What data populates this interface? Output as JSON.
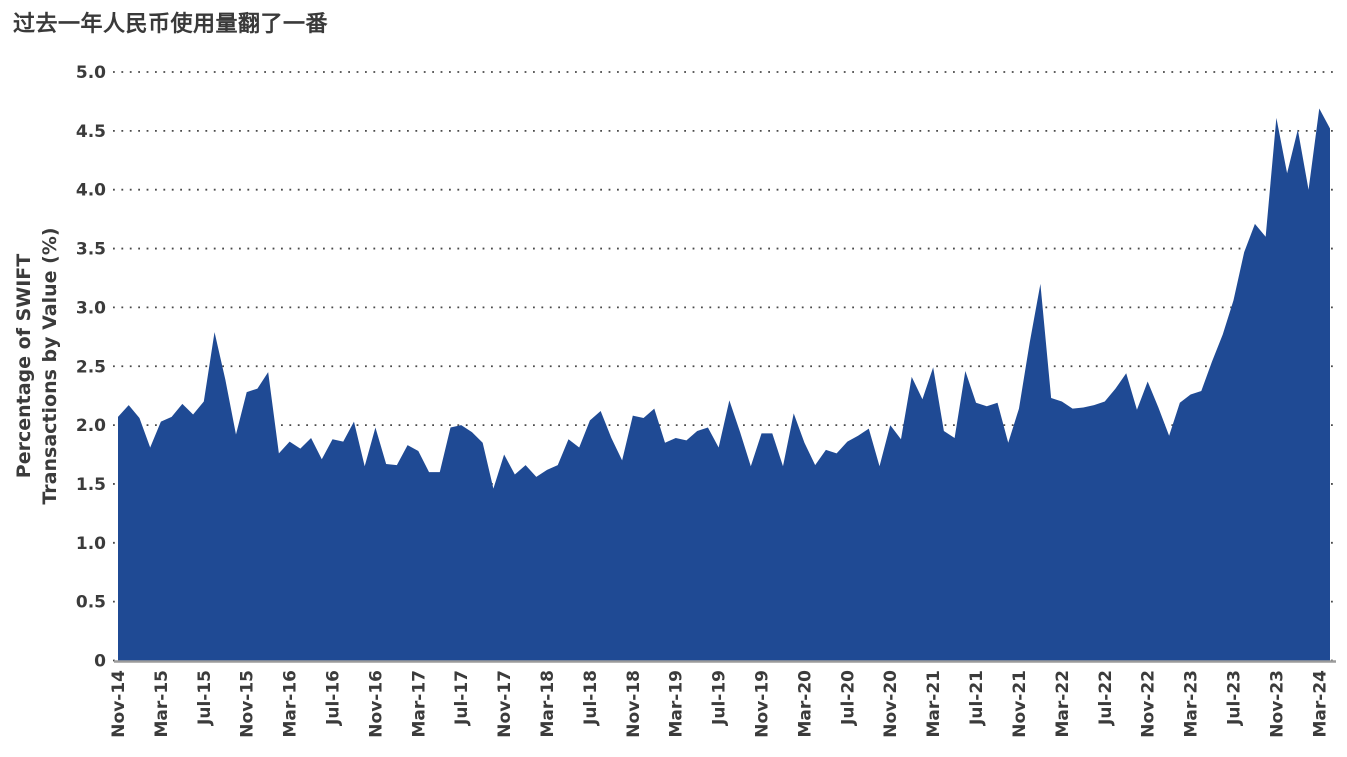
{
  "page": {
    "title": "过去一年人民币使用量翻了一番"
  },
  "chart_data": {
    "type": "area",
    "title": "过去一年人民币使用量翻了一番",
    "ylabel": "Percentage of SWIFT Transactions by Value (%)",
    "ylabel_lines": [
      "Percentage of SWIFT",
      "Transactions by Value (%)"
    ],
    "xlabel": "",
    "ylim": [
      0,
      5
    ],
    "grid": "horizontal-dotted",
    "legend": null,
    "x_tick_every": 4,
    "x_tick_labels_visible": [
      "Nov-14",
      "Mar-15",
      "Jul-15",
      "Nov-15",
      "Mar-16",
      "Jul-16",
      "Nov-16",
      "Mar-17",
      "Jul-17",
      "Nov-17",
      "Mar-18",
      "Jul-18",
      "Nov-18",
      "Mar-19",
      "Jul-19",
      "Nov-19",
      "Mar-20",
      "Jul-20",
      "Nov-20",
      "Mar-21",
      "Jul-21",
      "Nov-21",
      "Mar-22",
      "Jul-22",
      "Nov-22",
      "Mar-23",
      "Jul-23",
      "Nov-23",
      "Mar-24"
    ],
    "y_ticks": [
      {
        "value": 5.0,
        "label": "5.0"
      },
      {
        "value": 4.5,
        "label": "4.5"
      },
      {
        "value": 4.0,
        "label": "4.0"
      },
      {
        "value": 3.5,
        "label": "3.5"
      },
      {
        "value": 3.0,
        "label": "3.0"
      },
      {
        "value": 2.5,
        "label": "2.5"
      },
      {
        "value": 2.0,
        "label": "2.0"
      },
      {
        "value": 1.5,
        "label": "1.5"
      },
      {
        "value": 1.0,
        "label": "1.0"
      },
      {
        "value": 0.5,
        "label": "0.5"
      },
      {
        "value": 0.0,
        "label": "0"
      }
    ],
    "x": [
      "Nov-14",
      "Dec-14",
      "Jan-15",
      "Feb-15",
      "Mar-15",
      "Apr-15",
      "May-15",
      "Jun-15",
      "Jul-15",
      "Aug-15",
      "Sep-15",
      "Oct-15",
      "Nov-15",
      "Dec-15",
      "Jan-16",
      "Feb-16",
      "Mar-16",
      "Apr-16",
      "May-16",
      "Jun-16",
      "Jul-16",
      "Aug-16",
      "Sep-16",
      "Oct-16",
      "Nov-16",
      "Dec-16",
      "Jan-17",
      "Feb-17",
      "Mar-17",
      "Apr-17",
      "May-17",
      "Jun-17",
      "Jul-17",
      "Aug-17",
      "Sep-17",
      "Oct-17",
      "Nov-17",
      "Dec-17",
      "Jan-18",
      "Feb-18",
      "Mar-18",
      "Apr-18",
      "May-18",
      "Jun-18",
      "Jul-18",
      "Aug-18",
      "Sep-18",
      "Oct-18",
      "Nov-18",
      "Dec-18",
      "Jan-19",
      "Feb-19",
      "Mar-19",
      "Apr-19",
      "May-19",
      "Jun-19",
      "Jul-19",
      "Aug-19",
      "Sep-19",
      "Oct-19",
      "Nov-19",
      "Dec-19",
      "Jan-20",
      "Feb-20",
      "Mar-20",
      "Apr-20",
      "May-20",
      "Jun-20",
      "Jul-20",
      "Aug-20",
      "Sep-20",
      "Oct-20",
      "Nov-20",
      "Dec-20",
      "Jan-21",
      "Feb-21",
      "Mar-21",
      "Apr-21",
      "May-21",
      "Jun-21",
      "Jul-21",
      "Aug-21",
      "Sep-21",
      "Oct-21",
      "Nov-21",
      "Dec-21",
      "Jan-22",
      "Feb-22",
      "Mar-22",
      "Apr-22",
      "May-22",
      "Jun-22",
      "Jul-22",
      "Aug-22",
      "Sep-22",
      "Oct-22",
      "Nov-22",
      "Dec-22",
      "Jan-23",
      "Feb-23",
      "Mar-23",
      "Apr-23",
      "May-23",
      "Jun-23",
      "Jul-23",
      "Aug-23",
      "Sep-23",
      "Oct-23",
      "Nov-23",
      "Dec-23",
      "Jan-24",
      "Feb-24",
      "Mar-24",
      "Apr-24"
    ],
    "values": [
      2.07,
      2.17,
      2.06,
      1.81,
      2.03,
      2.07,
      2.18,
      2.09,
      2.2,
      2.79,
      2.39,
      1.92,
      2.28,
      2.31,
      2.45,
      1.76,
      1.86,
      1.8,
      1.89,
      1.71,
      1.88,
      1.86,
      2.03,
      1.65,
      1.98,
      1.67,
      1.66,
      1.83,
      1.78,
      1.6,
      1.6,
      1.98,
      2.0,
      1.94,
      1.85,
      1.46,
      1.75,
      1.58,
      1.66,
      1.56,
      1.62,
      1.66,
      1.88,
      1.81,
      2.04,
      2.12,
      1.89,
      1.7,
      2.08,
      2.06,
      2.14,
      1.85,
      1.89,
      1.87,
      1.95,
      1.98,
      1.81,
      2.21,
      1.94,
      1.65,
      1.93,
      1.93,
      1.65,
      2.1,
      1.85,
      1.66,
      1.79,
      1.76,
      1.86,
      1.91,
      1.97,
      1.65,
      2.0,
      1.88,
      2.41,
      2.22,
      2.49,
      1.95,
      1.89,
      2.46,
      2.19,
      2.16,
      2.19,
      1.85,
      2.14,
      2.7,
      3.2,
      2.23,
      2.2,
      2.14,
      2.15,
      2.17,
      2.2,
      2.31,
      2.44,
      2.13,
      2.37,
      2.15,
      1.91,
      2.19,
      2.26,
      2.29,
      2.54,
      2.77,
      3.06,
      3.47,
      3.71,
      3.6,
      4.61,
      4.14,
      4.51,
      4.0,
      4.69,
      4.52
    ],
    "colors": {
      "area_fill": "#1F4A94",
      "baseline": "#9B9B9B",
      "grid_dots": "#4A4A4A",
      "text": "#3B3B3B",
      "background": "#FFFFFF"
    }
  }
}
